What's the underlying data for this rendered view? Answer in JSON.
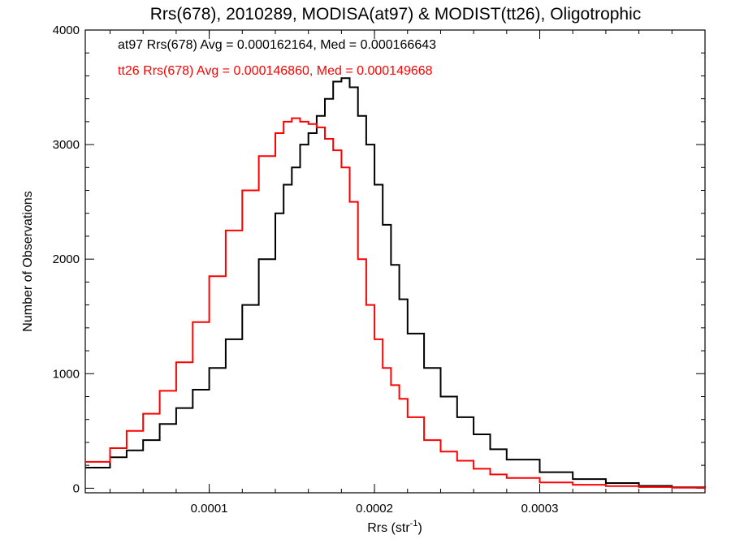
{
  "chart_data": {
    "type": "line",
    "title": "Rrs(678), 2010289, MODISA(at97) & MODIST(tt26), Oligotrophic",
    "xlabel": "Rrs (str",
    "xlabel_sup": "-1",
    "xlabel_end": ")",
    "ylabel": "Number of Observations",
    "xlim": [
      2.5e-05,
      0.0004
    ],
    "ylim": [
      -40,
      4000
    ],
    "x_ticks": [
      0.0001,
      0.0002,
      0.0003
    ],
    "x_tick_labels": [
      "0.0001",
      "0.0002",
      "0.0003"
    ],
    "y_ticks": [
      0,
      1000,
      2000,
      3000,
      4000
    ],
    "y_tick_labels": [
      "0",
      "1000",
      "2000",
      "3000",
      "4000"
    ],
    "step": "histogram",
    "annotations": [
      {
        "text": "at97 Rrs(678) Avg = 0.000162164, Med = 0.000166643",
        "color": "#000000"
      },
      {
        "text": "tt26 Rrs(678) Avg = 0.000146860, Med = 0.000149668",
        "color": "#ff0000"
      }
    ],
    "series": [
      {
        "color": "#000000",
        "x": [
          2.5e-05,
          4e-05,
          5e-05,
          6e-05,
          7e-05,
          8e-05,
          9e-05,
          0.0001,
          0.00011,
          0.00012,
          0.00013,
          0.00014,
          0.000145,
          0.00015,
          0.000155,
          0.00016,
          0.000165,
          0.00017,
          0.000175,
          0.00018,
          0.000185,
          0.00019,
          0.000195,
          0.0002,
          0.000205,
          0.00021,
          0.000215,
          0.00022,
          0.00023,
          0.00024,
          0.00025,
          0.00026,
          0.00027,
          0.00028,
          0.0003,
          0.00032,
          0.00034,
          0.00036,
          0.00038,
          0.0004
        ],
        "y": [
          180,
          270,
          330,
          420,
          560,
          700,
          860,
          1050,
          1300,
          1600,
          2000,
          2400,
          2650,
          2800,
          3000,
          3100,
          3250,
          3400,
          3550,
          3580,
          3500,
          3250,
          3000,
          2650,
          2300,
          1950,
          1650,
          1350,
          1050,
          800,
          620,
          470,
          340,
          250,
          140,
          80,
          45,
          20,
          8,
          3
        ]
      },
      {
        "color": "#ff0000",
        "x": [
          2.5e-05,
          4e-05,
          5e-05,
          6e-05,
          7e-05,
          8e-05,
          9e-05,
          0.0001,
          0.00011,
          0.00012,
          0.00013,
          0.00014,
          0.000145,
          0.00015,
          0.000155,
          0.00016,
          0.000165,
          0.00017,
          0.000175,
          0.00018,
          0.000185,
          0.00019,
          0.000195,
          0.0002,
          0.000205,
          0.00021,
          0.000215,
          0.00022,
          0.00023,
          0.00024,
          0.00025,
          0.00026,
          0.00027,
          0.00028,
          0.0003,
          0.00032,
          0.00034,
          0.00036,
          0.00038,
          0.0004
        ],
        "y": [
          230,
          350,
          500,
          650,
          850,
          1100,
          1450,
          1850,
          2250,
          2600,
          2900,
          3100,
          3200,
          3230,
          3200,
          3180,
          3150,
          3050,
          2950,
          2800,
          2500,
          2000,
          1600,
          1300,
          1050,
          900,
          780,
          620,
          420,
          320,
          240,
          170,
          120,
          90,
          50,
          30,
          18,
          10,
          5,
          2
        ]
      }
    ]
  }
}
